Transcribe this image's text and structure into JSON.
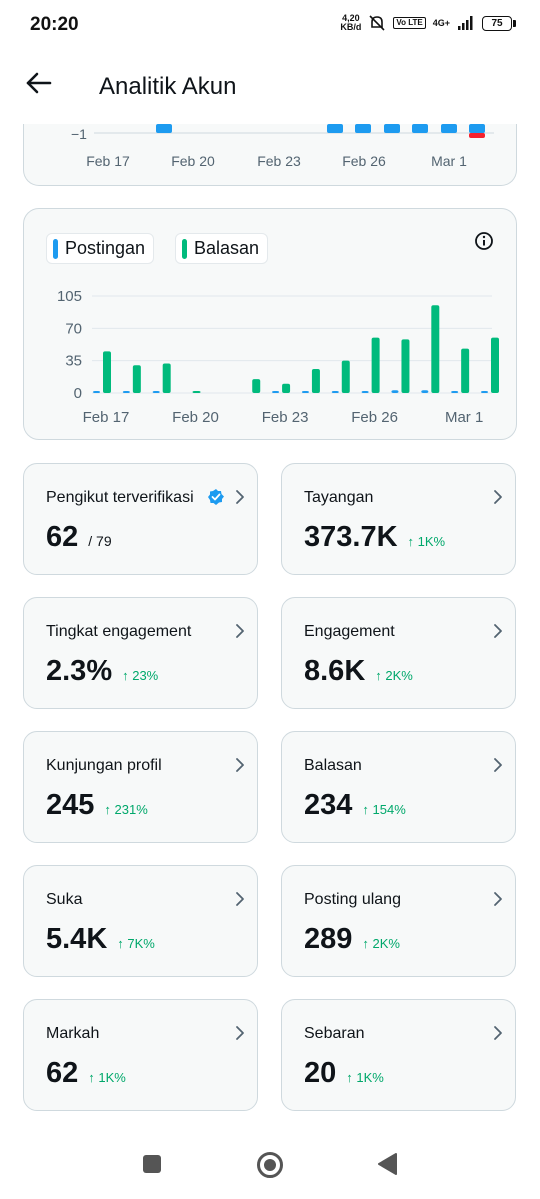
{
  "status_bar": {
    "time": "20:20",
    "speed_value": "4,20",
    "speed_unit": "KB/d",
    "volte": "Vo LTE",
    "network": "4G+",
    "battery": "75"
  },
  "header": {
    "title": "Analitik Akun"
  },
  "chart_top": {
    "y_tick": "−1",
    "x_labels": [
      "Feb 17",
      "Feb 20",
      "Feb 23",
      "Feb 26",
      "Mar 1"
    ]
  },
  "chart_data": {
    "type": "bar",
    "categories": [
      "Feb 17",
      "Feb 18",
      "Feb 19",
      "Feb 20",
      "Feb 21",
      "Feb 22",
      "Feb 23",
      "Feb 24",
      "Feb 25",
      "Feb 26",
      "Feb 27",
      "Feb 28",
      "Mar 1",
      "Mar 2"
    ],
    "x_tick_labels": [
      "Feb 17",
      "Feb 20",
      "Feb 23",
      "Feb 26",
      "Mar 1"
    ],
    "series": [
      {
        "name": "Postingan",
        "color": "#1d9bf0",
        "values": [
          1,
          1,
          1,
          0,
          0,
          0,
          1,
          1,
          1,
          1,
          3,
          3,
          1,
          1
        ]
      },
      {
        "name": "Balasan",
        "color": "#00ba7c",
        "values": [
          45,
          30,
          32,
          2,
          0,
          15,
          10,
          26,
          35,
          60,
          58,
          95,
          48,
          60
        ]
      }
    ],
    "y_ticks": [
      0,
      35,
      70,
      105
    ],
    "ylim": [
      0,
      110
    ],
    "grid": true,
    "legend_position": "top-left"
  },
  "stats": [
    {
      "label": "Pengikut terverifikasi",
      "value": "62",
      "sub": "/ 79",
      "change": "",
      "verified": true
    },
    {
      "label": "Tayangan",
      "value": "373.7K",
      "sub": "",
      "change": "↑ 1K%"
    },
    {
      "label": "Tingkat engagement",
      "value": "2.3%",
      "sub": "",
      "change": "↑ 23%"
    },
    {
      "label": "Engagement",
      "value": "8.6K",
      "sub": "",
      "change": "↑ 2K%"
    },
    {
      "label": "Kunjungan profil",
      "value": "245",
      "sub": "",
      "change": "↑ 231%"
    },
    {
      "label": "Balasan",
      "value": "234",
      "sub": "",
      "change": "↑ 154%"
    },
    {
      "label": "Suka",
      "value": "5.4K",
      "sub": "",
      "change": "↑ 7K%"
    },
    {
      "label": "Posting ulang",
      "value": "289",
      "sub": "",
      "change": "↑ 2K%"
    },
    {
      "label": "Markah",
      "value": "62",
      "sub": "",
      "change": "↑ 1K%"
    },
    {
      "label": "Sebaran",
      "value": "20",
      "sub": "",
      "change": "↑ 1K%"
    }
  ]
}
